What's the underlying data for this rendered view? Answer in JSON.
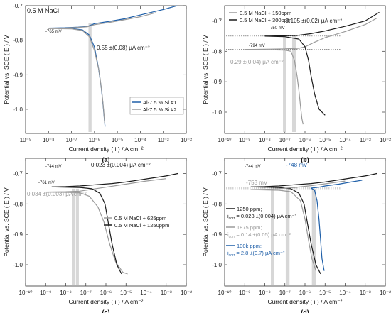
{
  "colors": {
    "black": "#1a1a1a",
    "gray": "#9a9a9a",
    "blue": "#1f5fa8",
    "band": "#d0d0d0"
  },
  "chart_data": [
    {
      "type": "line",
      "panel_label": "(a)",
      "xlabel": "Current density ( i ) / A cm⁻²",
      "ylabel": "Potential vs. SCE ( E ) / V",
      "xscale": "log",
      "xlim": [
        1e-09,
        0.01
      ],
      "ylim": [
        -1.07,
        -0.7
      ],
      "xticks": [
        "10⁻⁹",
        "10⁻⁸",
        "10⁻⁷",
        "10⁻⁶",
        "10⁻⁵",
        "10⁻⁴",
        "10⁻³",
        "10⁻²"
      ],
      "yticks": [
        "-0.7",
        "-0.8",
        "-0.9",
        "-1.0"
      ],
      "inset_text": "0.5 M NaCl",
      "legend": "lower-right",
      "series": [
        {
          "name": "Al-7.5 % Si  #1",
          "color": "#1f5fa8",
          "anodic": [
            [
              1e-08,
              -0.765
            ],
            [
              5e-08,
              -0.764
            ],
            [
              2e-07,
              -0.762
            ],
            [
              5e-07,
              -0.76
            ],
            [
              1e-06,
              -0.752
            ],
            [
              5e-06,
              -0.745
            ],
            [
              2e-05,
              -0.738
            ],
            [
              0.0001,
              -0.727
            ],
            [
              0.001,
              -0.711
            ],
            [
              0.004,
              -0.7
            ]
          ],
          "cathodic": [
            [
              1e-08,
              -0.765
            ],
            [
              1e-07,
              -0.766
            ],
            [
              3e-07,
              -0.77
            ],
            [
              6e-07,
              -0.785
            ],
            [
              1e-06,
              -0.82
            ],
            [
              1.5e-06,
              -0.88
            ],
            [
              2e-06,
              -0.94
            ],
            [
              2.4e-06,
              -0.99
            ],
            [
              2.7e-06,
              -1.03
            ],
            [
              2.9e-06,
              -1.05
            ]
          ]
        },
        {
          "name": "Al-7.5 % Si  #2",
          "color": "#9a9a9a",
          "anodic": [
            [
              1e-08,
              -0.766
            ],
            [
              5e-08,
              -0.765
            ],
            [
              2e-07,
              -0.763
            ],
            [
              5e-07,
              -0.761
            ],
            [
              1e-06,
              -0.755
            ],
            [
              5e-06,
              -0.748
            ],
            [
              2e-05,
              -0.741
            ],
            [
              0.0001,
              -0.732
            ],
            [
              0.0005,
              -0.72
            ]
          ],
          "cathodic": [
            [
              1e-08,
              -0.766
            ],
            [
              1e-07,
              -0.767
            ],
            [
              3e-07,
              -0.772
            ],
            [
              6e-07,
              -0.79
            ],
            [
              1e-06,
              -0.83
            ],
            [
              1.6e-06,
              -0.89
            ],
            [
              2.1e-06,
              -0.95
            ],
            [
              2.5e-06,
              -1.0
            ],
            [
              2.8e-06,
              -1.04
            ]
          ]
        }
      ],
      "annotations": [
        {
          "text": "-765 mV",
          "color": "#1a1a1a"
        },
        {
          "text": "0.55 ±(0.08) μA cm⁻²",
          "color": "#1a1a1a"
        }
      ],
      "bands": [
        [
          5.5e-07,
          7.5e-07
        ]
      ],
      "ecorr_lines": [
        -0.765
      ]
    },
    {
      "type": "line",
      "panel_label": "(b)",
      "xlabel": "Current density ( i ) / A cm⁻²",
      "ylabel": "Potential vs. SCE ( E ) / V",
      "xscale": "log",
      "xlim": [
        1e-10,
        0.01
      ],
      "ylim": [
        -1.07,
        -0.65
      ],
      "xticks": [
        "10⁻¹⁰",
        "10⁻⁹",
        "10⁻⁸",
        "10⁻⁷",
        "10⁻⁶",
        "10⁻⁵",
        "10⁻⁴",
        "10⁻³",
        "10⁻²"
      ],
      "yticks": [
        "-0.7",
        "-0.8",
        "-0.9",
        "-1.0"
      ],
      "legend": "top-left",
      "series": [
        {
          "name": "0.5 M NaCl + 150ppm",
          "color": "#9a9a9a",
          "anodic": [
            [
              1e-09,
              -0.794
            ],
            [
              1e-08,
              -0.793
            ],
            [
              1e-07,
              -0.792
            ],
            [
              5e-07,
              -0.79
            ],
            [
              1e-06,
              -0.785
            ],
            [
              3e-06,
              -0.77
            ],
            [
              1e-05,
              -0.755
            ],
            [
              0.0001,
              -0.735
            ],
            [
              0.001,
              -0.712
            ],
            [
              0.004,
              -0.69
            ]
          ],
          "cathodic": [
            [
              1e-09,
              -0.794
            ],
            [
              1e-07,
              -0.796
            ],
            [
              2e-07,
              -0.8
            ],
            [
              3e-07,
              -0.83
            ],
            [
              4e-07,
              -0.88
            ],
            [
              5e-07,
              -0.93
            ],
            [
              6e-07,
              -0.98
            ],
            [
              7e-07,
              -1.02
            ],
            [
              8e-07,
              -1.04
            ]
          ]
        },
        {
          "name": "0.5 M NaCl + 300ppm",
          "color": "#1a1a1a",
          "anodic": [
            [
              1e-08,
              -0.75
            ],
            [
              1e-07,
              -0.749
            ],
            [
              5e-07,
              -0.747
            ],
            [
              2e-06,
              -0.742
            ],
            [
              1e-05,
              -0.733
            ],
            [
              0.0001,
              -0.718
            ],
            [
              0.001,
              -0.7
            ],
            [
              0.005,
              -0.672
            ]
          ],
          "cathodic": [
            [
              1e-08,
              -0.75
            ],
            [
              1e-07,
              -0.752
            ],
            [
              5e-07,
              -0.76
            ],
            [
              1e-06,
              -0.785
            ],
            [
              1.5e-06,
              -0.83
            ],
            [
              2e-06,
              -0.88
            ],
            [
              3e-06,
              -0.94
            ],
            [
              5e-06,
              -0.99
            ],
            [
              1e-05,
              -1.01
            ]
          ]
        }
      ],
      "annotations": [
        {
          "text": "-750 mV",
          "color": "#1a1a1a"
        },
        {
          "text": "-794 mV",
          "color": "#1a1a1a"
        },
        {
          "text": "0.105 ±(0.02) μA cm⁻²",
          "color": "#1a1a1a"
        },
        {
          "text": "0.29 ±(0.04) μA cm⁻²",
          "color": "#9a9a9a"
        }
      ],
      "bands": [
        [
          8e-08,
          1.2e-07
        ],
        [
          2.3e-07,
          3.5e-07
        ]
      ],
      "ecorr_lines": [
        -0.75,
        -0.794
      ]
    },
    {
      "type": "line",
      "panel_label": "(c)",
      "xlabel": "Current density ( i ) / A cm⁻²",
      "ylabel": "Potential vs. SCE ( E ) / V",
      "xscale": "log",
      "xlim": [
        1e-10,
        0.01
      ],
      "ylim": [
        -1.07,
        -0.65
      ],
      "xticks": [
        "10⁻¹⁰",
        "10⁻⁹",
        "10⁻⁸",
        "10⁻⁷",
        "10⁻⁶",
        "10⁻⁵",
        "10⁻⁴",
        "10⁻³",
        "10⁻²"
      ],
      "yticks": [
        "-0.7",
        "-0.8",
        "-0.9",
        "-1.0"
      ],
      "legend": "center-right",
      "series": [
        {
          "name": "0.5 M NaCl + 625ppm",
          "color": "#9a9a9a",
          "anodic": [
            [
              1e-09,
              -0.761
            ],
            [
              1e-08,
              -0.76
            ],
            [
              5e-08,
              -0.758
            ],
            [
              2e-07,
              -0.752
            ],
            [
              1e-06,
              -0.745
            ],
            [
              1e-05,
              -0.735
            ],
            [
              0.0001,
              -0.725
            ],
            [
              0.001,
              -0.717
            ]
          ],
          "cathodic": [
            [
              1e-09,
              -0.761
            ],
            [
              5e-08,
              -0.763
            ],
            [
              1.5e-07,
              -0.775
            ],
            [
              4e-07,
              -0.81
            ],
            [
              8e-07,
              -0.86
            ],
            [
              1.5e-06,
              -0.93
            ],
            [
              3e-06,
              -0.99
            ],
            [
              7e-06,
              -1.025
            ],
            [
              1.2e-05,
              -1.03
            ]
          ]
        },
        {
          "name": "0.5 M NaCl + 1250ppm",
          "color": "#1a1a1a",
          "anodic": [
            [
              2e-09,
              -0.744
            ],
            [
              1e-08,
              -0.743
            ],
            [
              5e-08,
              -0.741
            ],
            [
              3e-07,
              -0.737
            ],
            [
              2e-06,
              -0.733
            ],
            [
              1e-05,
              -0.728
            ],
            [
              0.0001,
              -0.718
            ],
            [
              0.001,
              -0.708
            ],
            [
              0.004,
              -0.7
            ]
          ],
          "cathodic": [
            [
              2e-09,
              -0.744
            ],
            [
              5e-08,
              -0.746
            ],
            [
              2e-07,
              -0.75
            ],
            [
              5e-07,
              -0.765
            ],
            [
              9e-07,
              -0.8
            ],
            [
              1.3e-06,
              -0.86
            ],
            [
              2e-06,
              -0.93
            ],
            [
              3.5e-06,
              -1.0
            ],
            [
              6e-06,
              -1.03
            ]
          ]
        }
      ],
      "annotations": [
        {
          "text": "-744 mV",
          "color": "#1a1a1a"
        },
        {
          "text": "-761 mV",
          "color": "#1a1a1a"
        },
        {
          "text": "0.023 ±(0.004) μA cm⁻²",
          "color": "#1a1a1a"
        },
        {
          "text": "0.034 ±(0.003) μA cm⁻²",
          "color": "#9a9a9a"
        }
      ],
      "bands": [
        [
          2e-08,
          3e-08
        ],
        [
          3.2e-08,
          4.5e-08
        ]
      ],
      "ecorr_lines": [
        -0.744,
        -0.761
      ]
    },
    {
      "type": "line",
      "panel_label": "(d)",
      "xlabel": "Current density ( i ) / A cm⁻²",
      "ylabel": "Potential vs. SCE ( E ) / V",
      "xscale": "log",
      "xlim": [
        1e-10,
        0.01
      ],
      "ylim": [
        -1.07,
        -0.65
      ],
      "xticks": [
        "10⁻¹⁰",
        "10⁻⁹",
        "10⁻⁸",
        "10⁻⁷",
        "10⁻⁶",
        "10⁻⁵",
        "10⁻⁴",
        "10⁻³",
        "10⁻²"
      ],
      "yticks": [
        "-0.7",
        "-0.8",
        "-0.9",
        "-1.0"
      ],
      "legend": "center-left",
      "series": [
        {
          "name": "1250 ppm;",
          "current_text": "= 0.023 ±(0.004) μA cm⁻²",
          "color": "#1a1a1a",
          "anodic": [
            [
              2e-09,
              -0.744
            ],
            [
              1e-08,
              -0.743
            ],
            [
              5e-08,
              -0.741
            ],
            [
              3e-07,
              -0.737
            ],
            [
              2e-06,
              -0.733
            ],
            [
              1e-05,
              -0.728
            ],
            [
              0.0001,
              -0.718
            ],
            [
              0.001,
              -0.708
            ],
            [
              0.004,
              -0.7
            ]
          ],
          "cathodic": [
            [
              2e-09,
              -0.744
            ],
            [
              5e-08,
              -0.746
            ],
            [
              2e-07,
              -0.75
            ],
            [
              5e-07,
              -0.765
            ],
            [
              9e-07,
              -0.8
            ],
            [
              1.3e-06,
              -0.86
            ],
            [
              2e-06,
              -0.93
            ],
            [
              3.5e-06,
              -1.0
            ],
            [
              6e-06,
              -1.03
            ]
          ]
        },
        {
          "name": "1875 ppm;",
          "current_text": "= 0.14 ±(0.05) μA cm⁻²",
          "color": "#9a9a9a",
          "anodic": [
            [
              2e-09,
              -0.753
            ],
            [
              1e-08,
              -0.752
            ],
            [
              5e-08,
              -0.75
            ],
            [
              3e-07,
              -0.746
            ],
            [
              2e-06,
              -0.74
            ],
            [
              1e-05,
              -0.734
            ],
            [
              0.0001,
              -0.725
            ]
          ],
          "cathodic": [
            [
              2e-09,
              -0.753
            ],
            [
              5e-08,
              -0.755
            ],
            [
              2e-07,
              -0.76
            ],
            [
              6e-07,
              -0.79
            ],
            [
              1e-06,
              -0.85
            ],
            [
              1.5e-06,
              -0.92
            ],
            [
              2.2e-06,
              -0.98
            ],
            [
              3.5e-06,
              -1.02
            ]
          ]
        },
        {
          "name": "100k ppm;",
          "current_text": "= 2.8 ±(0.7) μA cm⁻²",
          "color": "#1f5fa8",
          "anodic": [
            [
              2e-06,
              -0.748
            ],
            [
              5e-06,
              -0.745
            ],
            [
              1e-05,
              -0.741
            ],
            [
              5e-05,
              -0.735
            ],
            [
              0.0002,
              -0.728
            ],
            [
              0.0007,
              -0.722
            ]
          ],
          "cathodic": [
            [
              2e-06,
              -0.748
            ],
            [
              3e-06,
              -0.755
            ],
            [
              4e-06,
              -0.79
            ],
            [
              5e-06,
              -0.85
            ],
            [
              6e-06,
              -0.92
            ],
            [
              7e-06,
              -0.98
            ],
            [
              9e-06,
              -1.02
            ]
          ]
        }
      ],
      "annotations": [
        {
          "text": "-744 mV",
          "color": "#1a1a1a"
        },
        {
          "text": "-753 mV",
          "color": "#9a9a9a"
        },
        {
          "text": "-748 mV",
          "color": "#1f5fa8"
        }
      ],
      "bands": [
        [
          2e-08,
          3e-08
        ],
        [
          1.1e-07,
          1.7e-07
        ],
        [
          2.2e-06,
          3.4e-06
        ]
      ],
      "ecorr_lines": [
        -0.744,
        -0.753,
        -0.748
      ]
    }
  ]
}
